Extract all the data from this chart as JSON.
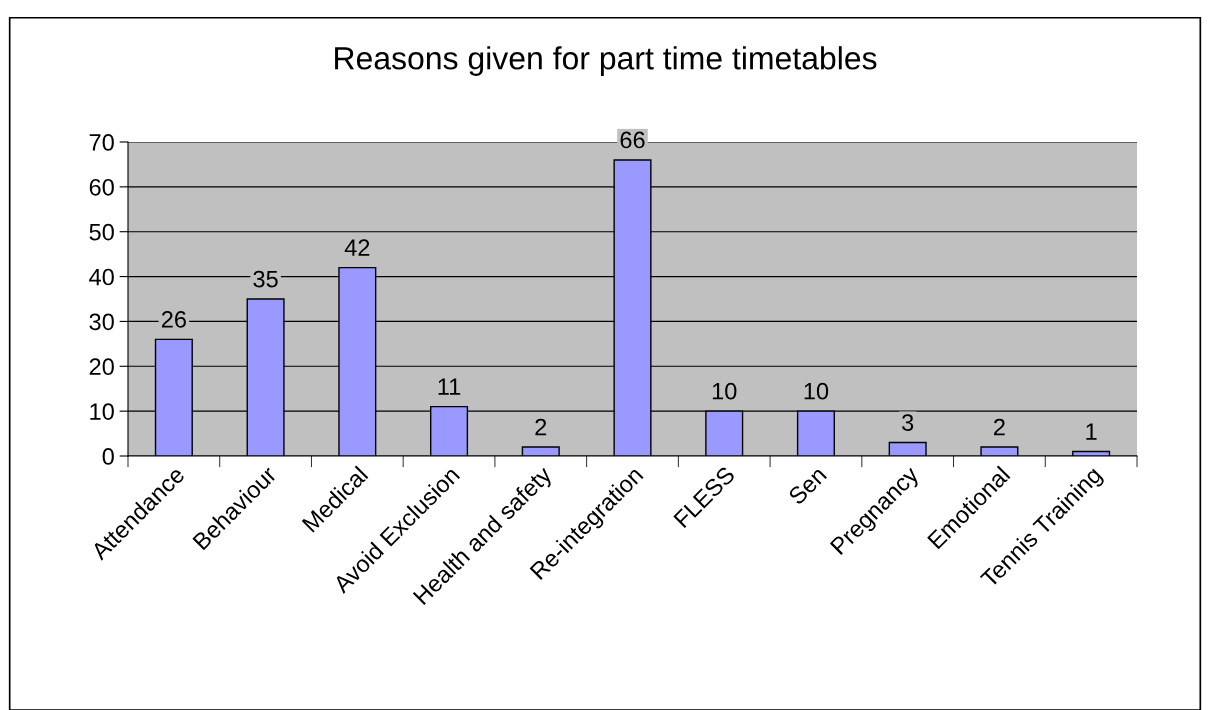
{
  "chart_data": {
    "type": "bar",
    "title": "Reasons given for part time timetables",
    "categories": [
      "Attendance",
      "Behaviour",
      "Medical",
      "Avoid Exclusion",
      "Health and safety",
      "Re-integration",
      "FLESS",
      "Sen",
      "Pregnancy",
      "Emotional",
      "Tennis Training"
    ],
    "values": [
      26,
      35,
      42,
      11,
      2,
      66,
      10,
      10,
      3,
      2,
      1
    ],
    "color": "#9999ff",
    "ylim": [
      0,
      70
    ],
    "yticks": [
      0,
      10,
      20,
      30,
      40,
      50,
      60,
      70
    ],
    "grid": "y",
    "data_labels": true,
    "legend": false
  }
}
